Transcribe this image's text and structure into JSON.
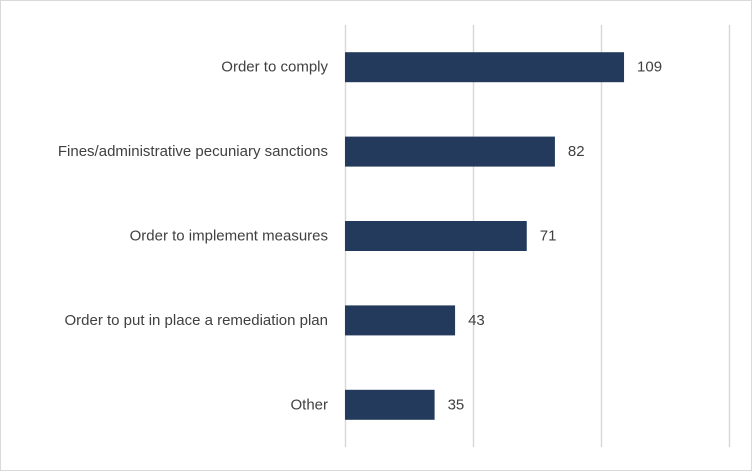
{
  "chart_data": {
    "type": "bar",
    "orientation": "horizontal",
    "categories": [
      "Order to comply",
      "Fines/administrative pecuniary sanctions",
      "Order to implement measures",
      "Order to put in place a remediation plan",
      "Other"
    ],
    "values": [
      109,
      82,
      71,
      43,
      35
    ],
    "xlim": [
      0,
      150
    ],
    "grid": true,
    "legend": "none",
    "bar_color": "#243a5c",
    "grid_color": "#d9d9d9"
  }
}
